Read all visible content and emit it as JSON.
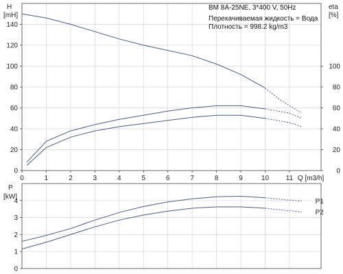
{
  "title": "BM 8A-25NE, 3*400 V, 50Hz",
  "notes": [
    "Перекачиваемая жидкость = Вода",
    "Плотность = 998.2 kg/m3"
  ],
  "colors": {
    "curve": "#4a5a82",
    "grid": "#d4d4d4",
    "frame": "#444444"
  },
  "chart_data": [
    {
      "type": "line",
      "name": "head-efficiency",
      "xlabel": "Q [m3/h]",
      "ylabel": "H\n[mH]",
      "y2label": "eta\n[%]",
      "xlim": [
        0,
        12.3
      ],
      "ylim": [
        0,
        160
      ],
      "y2lim": [
        0,
        160
      ],
      "xticks": [
        0,
        1,
        2,
        3,
        4,
        5,
        6,
        7,
        8,
        9,
        10,
        11
      ],
      "yticks": [
        0,
        20,
        40,
        60,
        80,
        100,
        120,
        140
      ],
      "y2ticks": [
        0,
        20,
        40,
        60,
        80,
        100
      ],
      "grid": true,
      "series": [
        {
          "id": "H",
          "solid": [
            [
              0,
              150
            ],
            [
              1,
              146
            ],
            [
              2,
              140
            ],
            [
              3,
              133
            ],
            [
              4,
              126
            ],
            [
              5,
              120
            ],
            [
              6,
              115
            ],
            [
              7,
              110
            ],
            [
              8,
              102
            ],
            [
              9,
              92
            ],
            [
              10,
              79
            ]
          ],
          "dashed": [
            [
              10,
              79
            ],
            [
              10.6,
              68
            ],
            [
              11.5,
              55
            ]
          ]
        },
        {
          "id": "eta-upper",
          "solid": [
            [
              0.2,
              8
            ],
            [
              1,
              28
            ],
            [
              2,
              38
            ],
            [
              3,
              44
            ],
            [
              4,
              49
            ],
            [
              5,
              53
            ],
            [
              6,
              57
            ],
            [
              7,
              60
            ],
            [
              8,
              62
            ],
            [
              9,
              62
            ],
            [
              10,
              59
            ]
          ],
          "dashed": [
            [
              10,
              59
            ],
            [
              11,
              55
            ],
            [
              11.5,
              50
            ]
          ]
        },
        {
          "id": "eta-lower",
          "solid": [
            [
              0.2,
              5
            ],
            [
              1,
              22
            ],
            [
              2,
              32
            ],
            [
              3,
              38
            ],
            [
              4,
              42
            ],
            [
              5,
              45
            ],
            [
              6,
              48
            ],
            [
              7,
              51
            ],
            [
              8,
              53
            ],
            [
              9,
              53
            ],
            [
              10,
              50
            ]
          ],
          "dashed": [
            [
              10,
              50
            ],
            [
              11,
              46
            ],
            [
              11.5,
              42
            ]
          ]
        }
      ]
    },
    {
      "type": "line",
      "name": "power",
      "ylabel": "P\n[kW]",
      "xlim": [
        0,
        12.3
      ],
      "ylim": [
        0,
        5
      ],
      "yticks": [
        0,
        1,
        2,
        3,
        4
      ],
      "grid": true,
      "series": [
        {
          "name": "P1",
          "solid": [
            [
              0,
              1.6
            ],
            [
              1,
              1.95
            ],
            [
              2,
              2.35
            ],
            [
              3,
              2.85
            ],
            [
              4,
              3.3
            ],
            [
              5,
              3.65
            ],
            [
              6,
              3.92
            ],
            [
              7,
              4.1
            ],
            [
              8,
              4.22
            ],
            [
              9,
              4.25
            ],
            [
              10,
              4.17
            ]
          ],
          "dashed": [
            [
              10,
              4.17
            ],
            [
              10.8,
              4.05
            ],
            [
              11.5,
              3.97
            ]
          ]
        },
        {
          "name": "P2",
          "solid": [
            [
              0,
              1.15
            ],
            [
              1,
              1.55
            ],
            [
              2,
              2.0
            ],
            [
              3,
              2.45
            ],
            [
              4,
              2.85
            ],
            [
              5,
              3.15
            ],
            [
              6,
              3.38
            ],
            [
              7,
              3.55
            ],
            [
              8,
              3.63
            ],
            [
              9,
              3.63
            ],
            [
              10,
              3.55
            ]
          ],
          "dashed": [
            [
              10,
              3.55
            ],
            [
              10.8,
              3.43
            ],
            [
              11.5,
              3.33
            ]
          ]
        }
      ]
    }
  ]
}
